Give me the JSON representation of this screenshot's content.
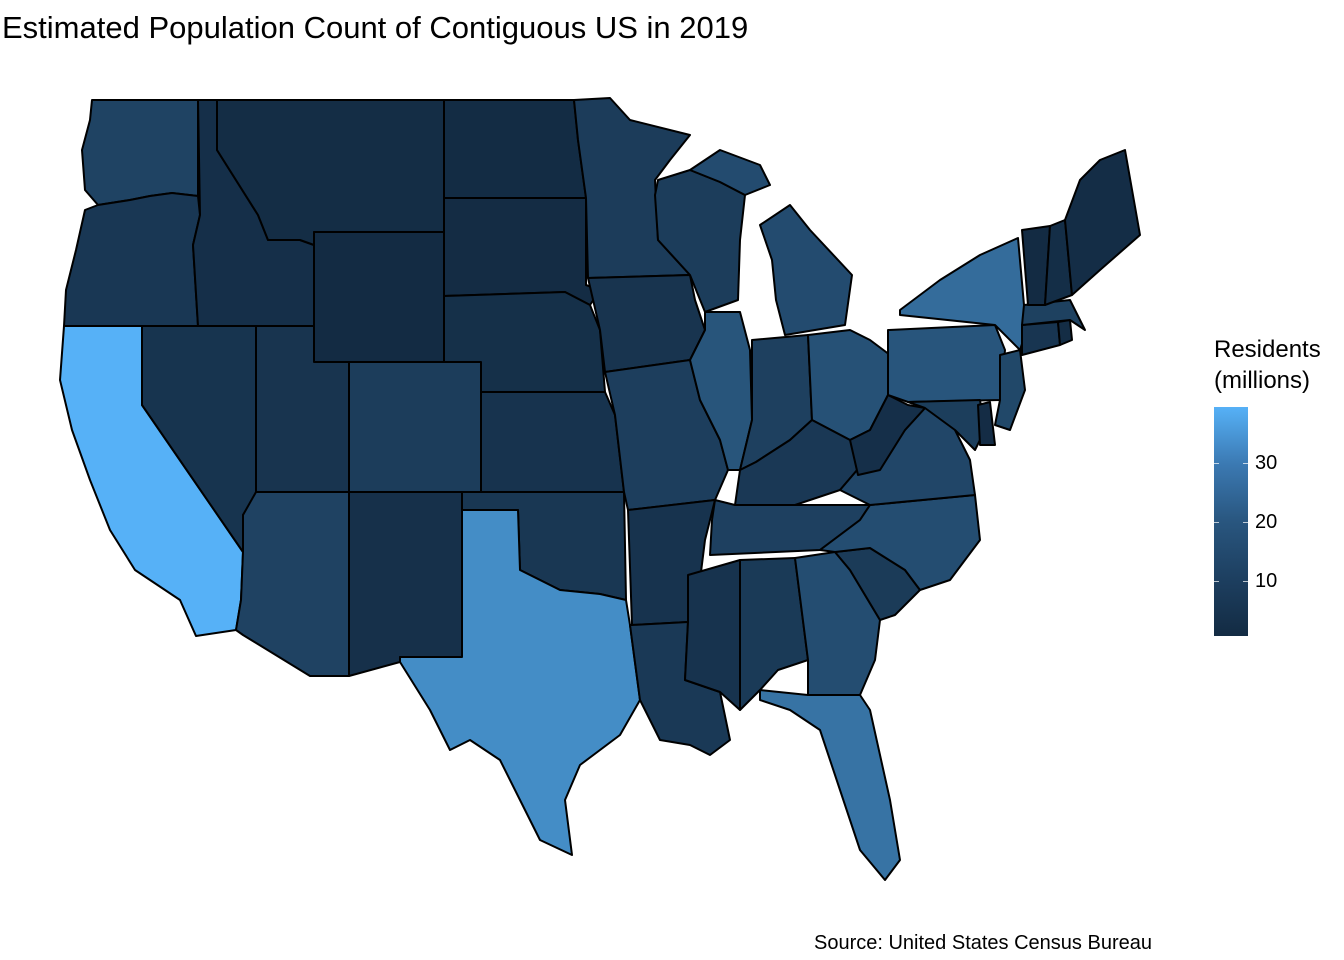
{
  "title": "Estimated Population Count of Contiguous US in 2019",
  "caption": "Source: United States Census Bureau",
  "legend": {
    "title_line1": "Residents",
    "title_line2": "(millions)",
    "ticks": [
      {
        "value": 10,
        "label": "10"
      },
      {
        "value": 20,
        "label": "20"
      },
      {
        "value": 30,
        "label": "30"
      }
    ],
    "range": [
      0.58,
      39.5
    ],
    "colors": {
      "low": "#132b43",
      "high": "#56b1f7"
    }
  },
  "states": [
    {
      "name": "WA",
      "value": 7.6
    },
    {
      "name": "OR",
      "value": 4.2
    },
    {
      "name": "CA",
      "value": 39.5
    },
    {
      "name": "ID",
      "value": 1.8
    },
    {
      "name": "NV",
      "value": 3.1
    },
    {
      "name": "MT",
      "value": 1.1
    },
    {
      "name": "WY",
      "value": 0.58
    },
    {
      "name": "UT",
      "value": 3.2
    },
    {
      "name": "AZ",
      "value": 7.3
    },
    {
      "name": "CO",
      "value": 5.8
    },
    {
      "name": "NM",
      "value": 2.1
    },
    {
      "name": "ND",
      "value": 0.76
    },
    {
      "name": "SD",
      "value": 0.88
    },
    {
      "name": "NE",
      "value": 1.9
    },
    {
      "name": "KS",
      "value": 2.9
    },
    {
      "name": "OK",
      "value": 4.0
    },
    {
      "name": "TX",
      "value": 29.0
    },
    {
      "name": "MN",
      "value": 5.6
    },
    {
      "name": "IA",
      "value": 3.2
    },
    {
      "name": "MO",
      "value": 6.1
    },
    {
      "name": "AR",
      "value": 3.0
    },
    {
      "name": "LA",
      "value": 4.6
    },
    {
      "name": "WI",
      "value": 5.8
    },
    {
      "name": "IL",
      "value": 12.7
    },
    {
      "name": "MI",
      "value": 10.0
    },
    {
      "name": "IN",
      "value": 6.7
    },
    {
      "name": "OH",
      "value": 11.7
    },
    {
      "name": "KY",
      "value": 4.5
    },
    {
      "name": "TN",
      "value": 6.8
    },
    {
      "name": "MS",
      "value": 3.0
    },
    {
      "name": "AL",
      "value": 4.9
    },
    {
      "name": "GA",
      "value": 10.6
    },
    {
      "name": "FL",
      "value": 21.5
    },
    {
      "name": "SC",
      "value": 5.1
    },
    {
      "name": "NC",
      "value": 10.5
    },
    {
      "name": "VA",
      "value": 8.5
    },
    {
      "name": "WV",
      "value": 1.8
    },
    {
      "name": "PA",
      "value": 12.8
    },
    {
      "name": "NY",
      "value": 19.5
    },
    {
      "name": "MD",
      "value": 6.0
    },
    {
      "name": "DE",
      "value": 0.97
    },
    {
      "name": "NJ",
      "value": 8.9
    },
    {
      "name": "CT",
      "value": 3.6
    },
    {
      "name": "RI",
      "value": 1.1
    },
    {
      "name": "MA",
      "value": 6.9
    },
    {
      "name": "VT",
      "value": 0.62
    },
    {
      "name": "NH",
      "value": 1.4
    },
    {
      "name": "ME",
      "value": 1.3
    }
  ]
}
